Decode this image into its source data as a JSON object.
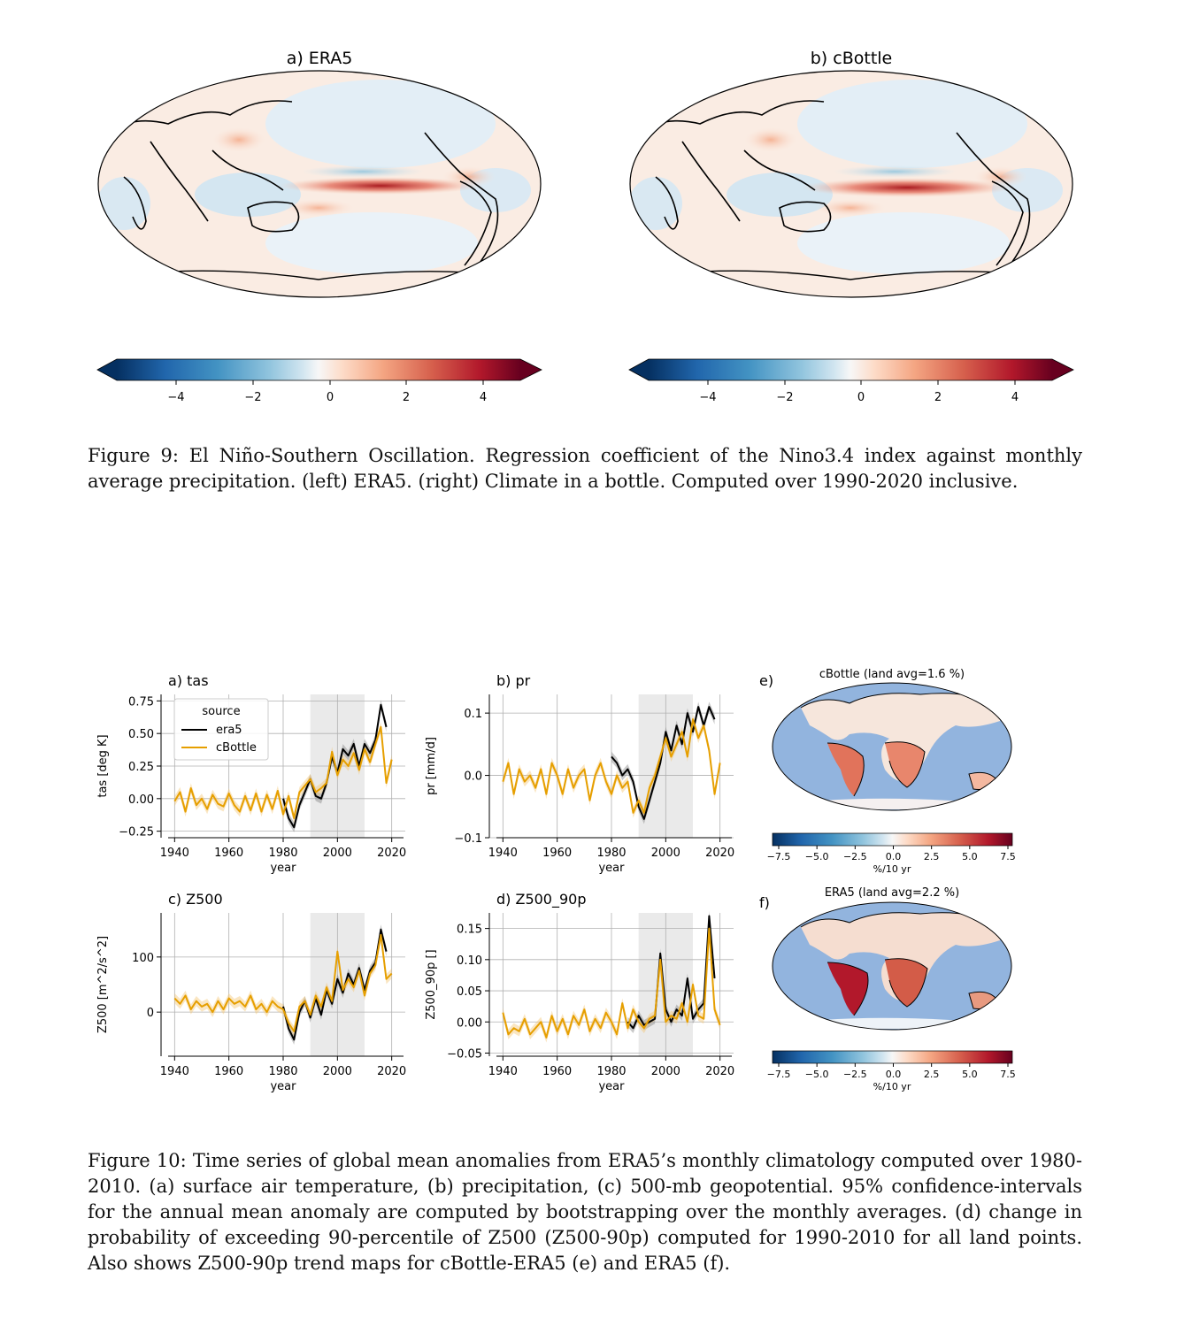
{
  "figure9": {
    "maps": [
      {
        "title": "a) ERA5"
      },
      {
        "title": "b) cBottle"
      }
    ],
    "colorbar_ticks": [
      "−4",
      "−2",
      "0",
      "2",
      "4"
    ],
    "caption": "Figure 9: El Niño-Southern Oscillation. Regression coefficient of the Nino3.4 index against monthly average precipitation. (left) ERA5. (right) Climate in a bottle. Computed over 1990-2020 inclusive."
  },
  "figure10": {
    "legend": {
      "title": "source",
      "entries": [
        "era5",
        "cBottle"
      ]
    },
    "colors": {
      "era5": "#000000",
      "cBottle": "#E69F00",
      "shade": "#d9d9d9"
    },
    "panels": [
      {
        "id": "tas",
        "title": "a) tas",
        "ylabel": "tas [deg K]",
        "xlabel": "year",
        "yticks": [
          "0.75",
          "0.50",
          "0.25",
          "0.00",
          "−0.25"
        ]
      },
      {
        "id": "pr",
        "title": "b) pr",
        "ylabel": "pr [mm/d]",
        "xlabel": "year",
        "yticks": [
          "0.1",
          "0.0",
          "−0.1"
        ]
      },
      {
        "id": "z500",
        "title": "c) Z500",
        "ylabel": "Z500 [m^2/s^2]",
        "xlabel": "year",
        "yticks": [
          "100",
          "0"
        ]
      },
      {
        "id": "z90",
        "title": "d) Z500_90p",
        "ylabel": "Z500_90p []",
        "xlabel": "year",
        "yticks": [
          "0.15",
          "0.10",
          "0.05",
          "0.00",
          "−0.05"
        ]
      }
    ],
    "xticks": [
      "1940",
      "1960",
      "1980",
      "2000",
      "2020"
    ],
    "trend_maps": [
      {
        "letter": "e)",
        "title": "cBottle (land avg=1.6 %)"
      },
      {
        "letter": "f)",
        "title": "ERA5 (land avg=2.2 %)"
      }
    ],
    "trend_colorbar_ticks": [
      "−7.5",
      "−5.0",
      "−2.5",
      "0.0",
      "2.5",
      "5.0",
      "7.5"
    ],
    "trend_colorbar_label": "%/10 yr",
    "caption": "Figure 10: Time series of global mean anomalies from ERA5’s monthly climatology computed over 1980-2010. (a) surface air temperature, (b) precipitation, (c) 500-mb geopotential. 95% confidence-intervals for the annual mean anomaly are computed by bootstrapping over the monthly averages. (d) change in probability of exceeding 90-percentile of Z500 (Z500-90p) computed for 1990-2010 for all land points. Also shows Z500-90p trend maps for cBottle-ERA5 (e) and ERA5 (f)."
  },
  "chart_data": [
    {
      "type": "line",
      "title": "a) tas",
      "xlabel": "year",
      "ylabel": "tas [deg K]",
      "xlim": [
        1935,
        2025
      ],
      "ylim": [
        -0.3,
        0.8
      ],
      "series": [
        {
          "name": "era5",
          "x": [
            1980,
            1982,
            1984,
            1986,
            1988,
            1990,
            1992,
            1994,
            1996,
            1998,
            2000,
            2002,
            2004,
            2006,
            2008,
            2010,
            2012,
            2014,
            2016,
            2018
          ],
          "values": [
            0.0,
            -0.15,
            -0.22,
            -0.05,
            0.05,
            0.15,
            0.02,
            0.0,
            0.12,
            0.32,
            0.2,
            0.38,
            0.33,
            0.42,
            0.25,
            0.42,
            0.35,
            0.45,
            0.72,
            0.55
          ]
        },
        {
          "name": "cBottle",
          "x": [
            1940,
            1942,
            1944,
            1946,
            1948,
            1950,
            1952,
            1954,
            1956,
            1958,
            1960,
            1962,
            1964,
            1966,
            1968,
            1970,
            1972,
            1974,
            1976,
            1978,
            1980,
            1982,
            1984,
            1986,
            1988,
            1990,
            1992,
            1994,
            1996,
            1998,
            2000,
            2002,
            2004,
            2006,
            2008,
            2010,
            2012,
            2014,
            2016,
            2018,
            2020
          ],
          "values": [
            -0.02,
            0.05,
            -0.1,
            0.08,
            -0.05,
            0.0,
            -0.08,
            0.03,
            -0.04,
            -0.06,
            0.04,
            -0.05,
            -0.1,
            0.02,
            -0.09,
            0.04,
            -0.1,
            0.03,
            -0.08,
            0.06,
            -0.12,
            0.02,
            -0.15,
            0.05,
            0.1,
            0.15,
            0.05,
            0.08,
            0.12,
            0.36,
            0.18,
            0.3,
            0.25,
            0.35,
            0.22,
            0.38,
            0.28,
            0.42,
            0.55,
            0.12,
            0.3
          ]
        }
      ],
      "shaded_range": [
        1990,
        2010
      ]
    },
    {
      "type": "line",
      "title": "b) pr",
      "xlabel": "year",
      "ylabel": "pr [mm/d]",
      "xlim": [
        1935,
        2025
      ],
      "ylim": [
        -0.1,
        0.13
      ],
      "series": [
        {
          "name": "era5",
          "x": [
            1980,
            1982,
            1984,
            1986,
            1988,
            1990,
            1992,
            1994,
            1996,
            1998,
            2000,
            2002,
            2004,
            2006,
            2008,
            2010,
            2012,
            2014,
            2016,
            2018
          ],
          "values": [
            0.03,
            0.02,
            0.0,
            0.01,
            -0.01,
            -0.05,
            -0.07,
            -0.04,
            -0.01,
            0.02,
            0.07,
            0.04,
            0.08,
            0.05,
            0.1,
            0.07,
            0.11,
            0.08,
            0.11,
            0.09
          ]
        },
        {
          "name": "cBottle",
          "x": [
            1940,
            1942,
            1944,
            1946,
            1948,
            1950,
            1952,
            1954,
            1956,
            1958,
            1960,
            1962,
            1964,
            1966,
            1968,
            1970,
            1972,
            1974,
            1976,
            1978,
            1980,
            1982,
            1984,
            1986,
            1988,
            1990,
            1992,
            1994,
            1996,
            1998,
            2000,
            2002,
            2004,
            2006,
            2008,
            2010,
            2012,
            2014,
            2016,
            2018,
            2020
          ],
          "values": [
            -0.01,
            0.02,
            -0.03,
            0.01,
            -0.01,
            0.0,
            -0.02,
            0.01,
            -0.03,
            0.02,
            0.0,
            -0.03,
            0.01,
            -0.02,
            0.0,
            0.01,
            -0.04,
            0.0,
            0.02,
            -0.01,
            -0.03,
            0.0,
            -0.02,
            -0.01,
            -0.06,
            -0.04,
            -0.06,
            -0.02,
            0.0,
            0.03,
            0.06,
            0.03,
            0.05,
            0.07,
            0.03,
            0.09,
            0.06,
            0.08,
            0.04,
            -0.03,
            0.02
          ]
        }
      ],
      "shaded_range": [
        1990,
        2010
      ]
    },
    {
      "type": "line",
      "title": "c) Z500",
      "xlabel": "year",
      "ylabel": "Z500 [m^2/s^2]",
      "xlim": [
        1935,
        2025
      ],
      "ylim": [
        -80,
        180
      ],
      "series": [
        {
          "name": "era5",
          "x": [
            1980,
            1982,
            1984,
            1986,
            1988,
            1990,
            1992,
            1994,
            1996,
            1998,
            2000,
            2002,
            2004,
            2006,
            2008,
            2010,
            2012,
            2014,
            2016,
            2018
          ],
          "values": [
            10,
            -30,
            -50,
            0,
            20,
            -10,
            25,
            -5,
            40,
            15,
            60,
            35,
            70,
            50,
            80,
            40,
            75,
            90,
            150,
            110
          ]
        },
        {
          "name": "cBottle",
          "x": [
            1940,
            1942,
            1944,
            1946,
            1948,
            1950,
            1952,
            1954,
            1956,
            1958,
            1960,
            1962,
            1964,
            1966,
            1968,
            1970,
            1972,
            1974,
            1976,
            1978,
            1980,
            1982,
            1984,
            1986,
            1988,
            1990,
            1992,
            1994,
            1996,
            1998,
            2000,
            2002,
            2004,
            2006,
            2008,
            2010,
            2012,
            2014,
            2016,
            2018,
            2020
          ],
          "values": [
            25,
            15,
            30,
            5,
            20,
            10,
            15,
            0,
            20,
            5,
            25,
            15,
            20,
            10,
            30,
            5,
            15,
            0,
            20,
            10,
            5,
            -20,
            -35,
            10,
            20,
            -5,
            30,
            10,
            45,
            20,
            110,
            40,
            60,
            45,
            75,
            30,
            70,
            85,
            140,
            60,
            70
          ]
        }
      ],
      "shaded_range": [
        1990,
        2010
      ]
    },
    {
      "type": "line",
      "title": "d) Z500_90p",
      "xlabel": "year",
      "ylabel": "Z500_90p []",
      "xlim": [
        1935,
        2025
      ],
      "ylim": [
        -0.055,
        0.175
      ],
      "series": [
        {
          "name": "era5",
          "x": [
            1986,
            1988,
            1990,
            1992,
            1994,
            1996,
            1998,
            2000,
            2002,
            2004,
            2006,
            2008,
            2010,
            2012,
            2014,
            2016,
            2018
          ],
          "values": [
            0.0,
            -0.01,
            0.01,
            -0.005,
            0.0,
            0.005,
            0.11,
            0.02,
            0.0,
            0.02,
            0.01,
            0.07,
            0.005,
            0.02,
            0.03,
            0.17,
            0.07
          ]
        },
        {
          "name": "cBottle",
          "x": [
            1940,
            1942,
            1944,
            1946,
            1948,
            1950,
            1952,
            1954,
            1956,
            1958,
            1960,
            1962,
            1964,
            1966,
            1968,
            1970,
            1972,
            1974,
            1976,
            1978,
            1980,
            1982,
            1984,
            1986,
            1988,
            1990,
            1992,
            1994,
            1996,
            1998,
            2000,
            2002,
            2004,
            2006,
            2008,
            2010,
            2012,
            2014,
            2016,
            2018,
            2020
          ],
          "values": [
            0.015,
            -0.02,
            -0.01,
            -0.015,
            0.005,
            -0.02,
            -0.01,
            0.0,
            -0.025,
            0.01,
            -0.015,
            0.005,
            -0.02,
            0.01,
            -0.005,
            0.02,
            -0.015,
            0.005,
            -0.01,
            0.015,
            0.0,
            -0.02,
            0.03,
            -0.01,
            0.02,
            0.0,
            -0.01,
            0.005,
            0.01,
            0.1,
            0.0,
            0.01,
            0.005,
            0.03,
            0.0,
            0.06,
            0.01,
            0.005,
            0.15,
            0.02,
            -0.005
          ]
        }
      ],
      "shaded_range": [
        1990,
        2010
      ]
    }
  ]
}
